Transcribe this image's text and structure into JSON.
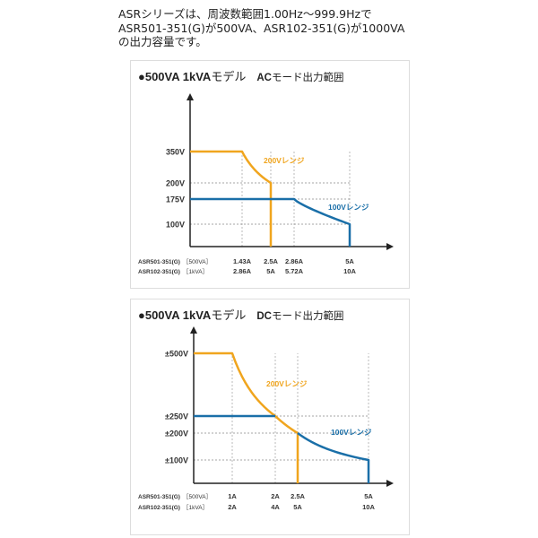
{
  "intro": [
    "ASRシリーズは、周波数範囲1.00Hz～999.9Hzで",
    "ASR501-351(G)が500VA、ASR102-351(G)が1000VA",
    "の出力容量です。"
  ],
  "chart_data": [
    {
      "type": "line",
      "title_bold": "●500VA 1kVA",
      "title_model": "モデル",
      "title_mode_bold": "AC",
      "title_mode": "モード出力範囲",
      "y_ticks": [
        "350V",
        "200V",
        "175V",
        "100V"
      ],
      "y_values": [
        350,
        200,
        175,
        100
      ],
      "x_values": [
        1.43,
        2.5,
        2.86,
        5
      ],
      "x_rows": [
        {
          "model": "ASR501-351(G)",
          "cap": "［500VA］",
          "ticks": [
            "1.43A",
            "2.5A",
            "2.86A",
            "5A"
          ]
        },
        {
          "model": "ASR102-351(G)",
          "cap": "［1kVA］",
          "ticks": [
            "2.86A",
            "5A",
            "5.72A",
            "10A"
          ]
        }
      ],
      "series": [
        {
          "name": "200Vレンジ",
          "color": "#f0a51e",
          "vmax": 350,
          "power": 500,
          "imax": 2.5,
          "vend": 200
        },
        {
          "name": "100Vレンジ",
          "color": "#1a6fa8",
          "vmax": 175,
          "power": 500,
          "imax": 5,
          "vend": 100
        }
      ]
    },
    {
      "type": "line",
      "title_bold": "●500VA 1kVA",
      "title_model": "モデル",
      "title_mode_bold": "DC",
      "title_mode": "モード出力範囲",
      "y_ticks": [
        "±500V",
        "±250V",
        "±200V",
        "±100V"
      ],
      "y_values": [
        500,
        250,
        200,
        100
      ],
      "x_values": [
        1,
        2,
        2.5,
        5
      ],
      "x_rows": [
        {
          "model": "ASR501-351(G)",
          "cap": "［500VA］",
          "ticks": [
            "1A",
            "2A",
            "2.5A",
            "5A"
          ]
        },
        {
          "model": "ASR102-351(G)",
          "cap": "［1kVA］",
          "ticks": [
            "2A",
            "4A",
            "5A",
            "10A"
          ]
        }
      ],
      "series": [
        {
          "name": "200Vレンジ",
          "color": "#f0a51e",
          "vmax": 500,
          "power": 500,
          "imax": 2.5,
          "vend": 200
        },
        {
          "name": "100Vレンジ",
          "color": "#1a6fa8",
          "vmax": 250,
          "power": 500,
          "imax": 5,
          "vend": 100
        }
      ]
    }
  ]
}
